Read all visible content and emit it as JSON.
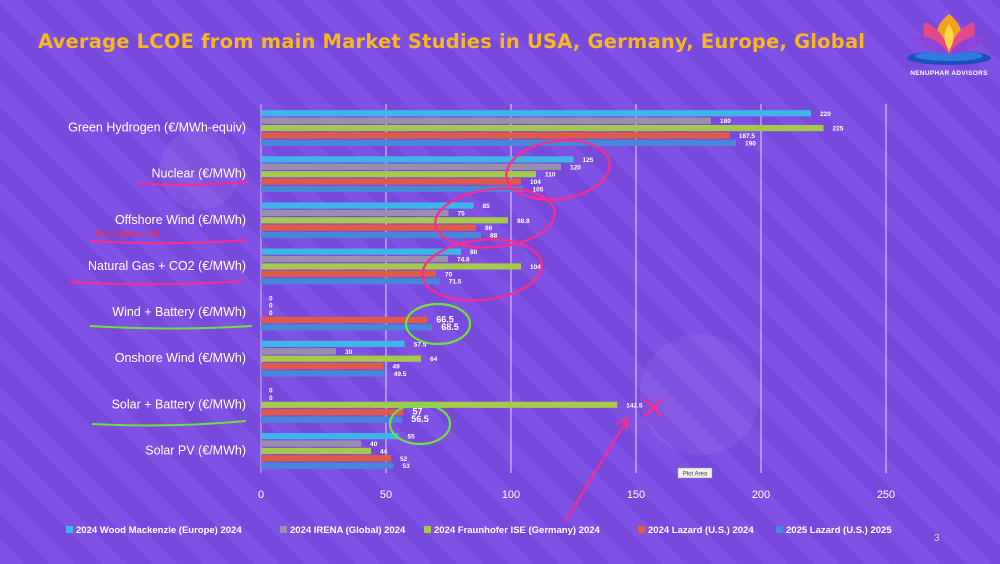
{
  "slide": {
    "title": "Average LCOE from main Market Studies in USA, Germany, Europe, Global",
    "brand": "NENUPHAR ADVISORS",
    "page_number": "3",
    "note": "(Mostly bottom fixed)",
    "plot_area_tag": "Plot Area"
  },
  "colors": {
    "background": "#7b4be3",
    "title": "#f6b81c",
    "annotation_pink": "#ff2a8a",
    "annotation_green": "#6ee23a"
  },
  "chart_data": {
    "type": "bar",
    "orientation": "horizontal",
    "categories": [
      "Green Hydrogen (€/MWh-equiv)",
      "Nuclear (€/MWh)",
      "Offshore Wind (€/MWh)",
      "Natural Gas + CO2 (€/MWh)",
      "Wind + Battery (€/MWh)",
      "Onshore Wind (€/MWh)",
      "Solar + Battery (€/MWh)",
      "Solar PV (€/MWh)"
    ],
    "series": [
      {
        "name": "2024 Wood Mackenzie (Europe) 2024",
        "color": "#3fb6e8",
        "values": [
          220,
          125,
          85,
          80,
          0,
          57.5,
          0,
          55
        ]
      },
      {
        "name": "2024 IRENA (Global) 2024",
        "color": "#9b8fb0",
        "values": [
          180,
          120,
          75,
          74.8,
          0,
          30,
          0,
          40
        ]
      },
      {
        "name": "2024 Fraunhofer ISE (Germany) 2024",
        "color": "#a6c94a",
        "values": [
          225,
          110,
          98.8,
          104,
          0,
          64,
          142.5,
          44
        ]
      },
      {
        "name": "2024 Lazard (U.S.) 2024",
        "color": "#e05a45",
        "values": [
          187.5,
          104,
          86,
          70,
          66.5,
          49,
          57,
          52
        ]
      },
      {
        "name": "2025 Lazard (U.S.) 2025",
        "color": "#4a86d8",
        "values": [
          190,
          105,
          88,
          71.5,
          68.5,
          49.5,
          56.5,
          53
        ]
      }
    ],
    "value_labels": [
      [
        "220",
        "180",
        "225",
        "187.5",
        "190"
      ],
      [
        "125",
        "120",
        "110",
        "104",
        "105"
      ],
      [
        "85",
        "75",
        "98.8",
        "86",
        "88"
      ],
      [
        "80",
        "74.8",
        "104",
        "70",
        "71.5"
      ],
      [
        "0",
        "0",
        "0",
        "66.5",
        "68.5"
      ],
      [
        "57.5",
        "30",
        "64",
        "49",
        "49.5"
      ],
      [
        "0",
        "0",
        "142.5",
        "57",
        "56.5"
      ],
      [
        "55",
        "40",
        "44",
        "52",
        "53"
      ]
    ],
    "xlim": [
      0,
      250
    ],
    "xticks": [
      "0",
      "50",
      "100",
      "150",
      "200",
      "250"
    ],
    "grid": "vertical",
    "legend_position": "bottom"
  }
}
